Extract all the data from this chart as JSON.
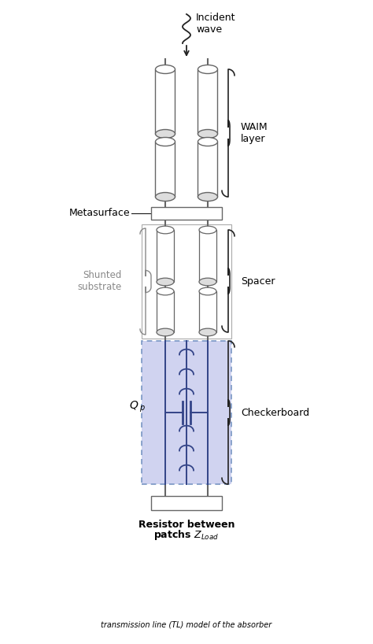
{
  "fig_width": 4.74,
  "fig_height": 8.18,
  "dpi": 100,
  "bg_color": "#ffffff",
  "line_color": "#666666",
  "dark_line": "#222222",
  "blue_fill": "#c8ccee",
  "label_waim": "WAIM\nlayer",
  "label_meta": "Metasurface",
  "label_shunt": "Shunted\nsubstrate",
  "label_spacer": "Spacer",
  "label_checker": "Checkerboard",
  "label_qp": "Q",
  "label_qp_sub": "p",
  "label_incident": "Incident\nwave",
  "label_bottom1": "Resistor between",
  "label_bottom2": "patchs ",
  "label_bottom3": "Z",
  "label_bottom4": "Load"
}
